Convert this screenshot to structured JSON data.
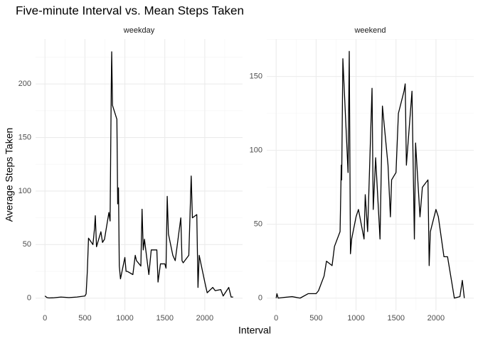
{
  "title": "Five-minute Interval vs. Mean Steps Taken",
  "x_label": "Interval",
  "y_label": "Average Steps Taken",
  "chart_data": [
    {
      "type": "line",
      "title": "weekday",
      "color": "#000000",
      "grid": true,
      "x": [
        0,
        25,
        50,
        100,
        200,
        300,
        400,
        500,
        515,
        530,
        545,
        600,
        620,
        630,
        645,
        700,
        720,
        745,
        800,
        815,
        830,
        835,
        845,
        900,
        910,
        920,
        930,
        945,
        1000,
        1015,
        1030,
        1100,
        1130,
        1145,
        1200,
        1215,
        1230,
        1245,
        1300,
        1330,
        1400,
        1415,
        1445,
        1500,
        1515,
        1530,
        1545,
        1600,
        1630,
        1700,
        1715,
        1730,
        1800,
        1830,
        1845,
        1900,
        1915,
        1930,
        2000,
        2030,
        2100,
        2130,
        2200,
        2230,
        2300,
        2330,
        2355
      ],
      "values": [
        2,
        0.5,
        0.2,
        0.3,
        1,
        0.5,
        1,
        2,
        4,
        25,
        56,
        50,
        65,
        77,
        48,
        62,
        52,
        55,
        80,
        72,
        200,
        230,
        180,
        167,
        88,
        103,
        30,
        18,
        38,
        25,
        25,
        22,
        40,
        35,
        30,
        83,
        45,
        55,
        22,
        45,
        45,
        15,
        32,
        32,
        28,
        95,
        60,
        40,
        35,
        75,
        35,
        33,
        40,
        114,
        75,
        78,
        10,
        40,
        15,
        5,
        10,
        7,
        8,
        2,
        10,
        1,
        1
      ],
      "xlim": [
        -117.75,
        2472.75
      ],
      "ylim": [
        -11.5,
        241.9
      ],
      "xticks": [
        0,
        500,
        1000,
        1500,
        2000
      ],
      "yticks": [
        0,
        50,
        100,
        150,
        200
      ],
      "xminor": [
        250,
        750,
        1250,
        1750,
        2250
      ],
      "yminor": [
        25,
        75,
        125,
        175,
        225
      ]
    },
    {
      "type": "line",
      "title": "weekend",
      "color": "#000000",
      "grid": true,
      "x": [
        0,
        10,
        25,
        100,
        200,
        300,
        400,
        500,
        530,
        600,
        630,
        700,
        730,
        800,
        815,
        820,
        835,
        845,
        900,
        915,
        930,
        945,
        1000,
        1030,
        1100,
        1115,
        1145,
        1200,
        1215,
        1245,
        1300,
        1330,
        1400,
        1430,
        1445,
        1500,
        1530,
        1600,
        1615,
        1630,
        1700,
        1730,
        1745,
        1800,
        1830,
        1900,
        1915,
        1930,
        2000,
        2030,
        2100,
        2145,
        2200,
        2230,
        2300,
        2330,
        2355
      ],
      "values": [
        0,
        3,
        0,
        0.5,
        1,
        0,
        3,
        3,
        5,
        15,
        25,
        22,
        35,
        45,
        90,
        80,
        162,
        150,
        85,
        167,
        30,
        40,
        55,
        60,
        40,
        70,
        45,
        142,
        60,
        95,
        40,
        130,
        90,
        55,
        80,
        85,
        125,
        140,
        145,
        90,
        140,
        40,
        105,
        55,
        75,
        80,
        22,
        45,
        60,
        55,
        28,
        28,
        10,
        0,
        1,
        12,
        0
      ],
      "xlim": [
        -117.75,
        2472.75
      ],
      "ylim": [
        -8.35,
        175.3
      ],
      "xticks": [
        0,
        500,
        1000,
        1500,
        2000
      ],
      "yticks": [
        0,
        50,
        100,
        150
      ],
      "xminor": [
        250,
        750,
        1250,
        1750,
        2250
      ],
      "yminor": [
        25,
        75,
        125,
        175
      ]
    }
  ]
}
